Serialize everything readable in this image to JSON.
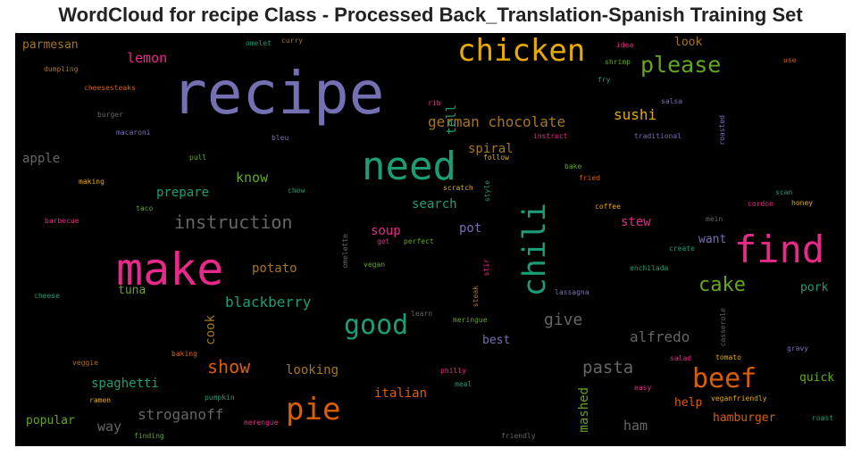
{
  "title": "WordCloud for recipe Class - Processed Back_Translation-Spanish Training Set",
  "chart_data": {
    "type": "wordcloud",
    "background": "#000000",
    "words": [
      {
        "text": "recipe",
        "size": 66,
        "color": "#7570b3"
      },
      {
        "text": "chicken",
        "size": 34,
        "color": "#e6ab02"
      },
      {
        "text": "please",
        "size": 25,
        "color": "#66a61e"
      },
      {
        "text": "need",
        "size": 44,
        "color": "#1b9e77"
      },
      {
        "text": "make",
        "size": 50,
        "color": "#e7298a"
      },
      {
        "text": "find",
        "size": 42,
        "color": "#e7298a"
      },
      {
        "text": "chili",
        "size": 35,
        "color": "#1b9e77"
      },
      {
        "text": "beef",
        "size": 30,
        "color": "#d95f02"
      },
      {
        "text": "pie",
        "size": 34,
        "color": "#d95f02"
      },
      {
        "text": "good",
        "size": 30,
        "color": "#1b9e77"
      },
      {
        "text": "cake",
        "size": 22,
        "color": "#66a61e"
      },
      {
        "text": "instruction",
        "size": 20,
        "color": "#666666"
      },
      {
        "text": "german chocolate",
        "size": 16,
        "color": "#a6761d"
      },
      {
        "text": "sushi",
        "size": 16,
        "color": "#e6ab02"
      },
      {
        "text": "lemon",
        "size": 15,
        "color": "#e7298a"
      },
      {
        "text": "parmesan",
        "size": 13,
        "color": "#a6761d"
      },
      {
        "text": "look",
        "size": 13,
        "color": "#a6761d"
      },
      {
        "text": "show",
        "size": 20,
        "color": "#d95f02"
      },
      {
        "text": "pasta",
        "size": 19,
        "color": "#666666"
      },
      {
        "text": "alfredo",
        "size": 16,
        "color": "#666666"
      },
      {
        "text": "give",
        "size": 18,
        "color": "#666666"
      },
      {
        "text": "blackberry",
        "size": 16,
        "color": "#1b9e77"
      },
      {
        "text": "stroganoff",
        "size": 16,
        "color": "#666666"
      },
      {
        "text": "know",
        "size": 15,
        "color": "#66a61e"
      },
      {
        "text": "prepare",
        "size": 14,
        "color": "#1b9e77"
      },
      {
        "text": "apple",
        "size": 14,
        "color": "#666666"
      },
      {
        "text": "soup",
        "size": 14,
        "color": "#e7298a"
      },
      {
        "text": "search",
        "size": 14,
        "color": "#1b9e77"
      },
      {
        "text": "pot",
        "size": 14,
        "color": "#7570b3"
      },
      {
        "text": "spiral",
        "size": 14,
        "color": "#a6761d"
      },
      {
        "text": "tell",
        "size": 14,
        "color": "#1b9e77"
      },
      {
        "text": "stew",
        "size": 14,
        "color": "#e7298a"
      },
      {
        "text": "want",
        "size": 13,
        "color": "#7570b3"
      },
      {
        "text": "pork",
        "size": 13,
        "color": "#1b9e77"
      },
      {
        "text": "potato",
        "size": 14,
        "color": "#a6761d"
      },
      {
        "text": "tuna",
        "size": 13,
        "color": "#66a61e"
      },
      {
        "text": "cook",
        "size": 14,
        "color": "#a6761d"
      },
      {
        "text": "best",
        "size": 13,
        "color": "#7570b3"
      },
      {
        "text": "looking",
        "size": 14,
        "color": "#a6761d"
      },
      {
        "text": "spaghetti",
        "size": 14,
        "color": "#1b9e77"
      },
      {
        "text": "italian",
        "size": 14,
        "color": "#d95f02"
      },
      {
        "text": "mashed",
        "size": 14,
        "color": "#66a61e"
      },
      {
        "text": "help",
        "size": 13,
        "color": "#d95f02"
      },
      {
        "text": "hamburger",
        "size": 13,
        "color": "#d95f02"
      },
      {
        "text": "ham",
        "size": 15,
        "color": "#666666"
      },
      {
        "text": "quick",
        "size": 13,
        "color": "#66a61e"
      },
      {
        "text": "popular",
        "size": 13,
        "color": "#66a61e"
      },
      {
        "text": "way",
        "size": 15,
        "color": "#666666"
      },
      {
        "text": "omelet",
        "size": 8,
        "color": "#1b9e77"
      },
      {
        "text": "curry",
        "size": 8,
        "color": "#a6761d"
      },
      {
        "text": "dumpling",
        "size": 8,
        "color": "#a6761d"
      },
      {
        "text": "cheesesteaks",
        "size": 8,
        "color": "#d95f02"
      },
      {
        "text": "burger",
        "size": 8,
        "color": "#666666"
      },
      {
        "text": "macaroni",
        "size": 8,
        "color": "#7570b3"
      },
      {
        "text": "bleu",
        "size": 8,
        "color": "#7570b3"
      },
      {
        "text": "pull",
        "size": 8,
        "color": "#66a61e"
      },
      {
        "text": "making",
        "size": 8,
        "color": "#e6ab02"
      },
      {
        "text": "chow",
        "size": 8,
        "color": "#1b9e77"
      },
      {
        "text": "taco",
        "size": 8,
        "color": "#66a61e"
      },
      {
        "text": "barbecue",
        "size": 8,
        "color": "#e7298a"
      },
      {
        "text": "cheese",
        "size": 8,
        "color": "#1b9e77"
      },
      {
        "text": "veggie",
        "size": 8,
        "color": "#a6761d"
      },
      {
        "text": "baking",
        "size": 8,
        "color": "#d95f02"
      },
      {
        "text": "pumpkin",
        "size": 8,
        "color": "#1b9e77"
      },
      {
        "text": "ramen",
        "size": 8,
        "color": "#e6ab02"
      },
      {
        "text": "finding",
        "size": 8,
        "color": "#66a61e"
      },
      {
        "text": "merengue",
        "size": 8,
        "color": "#e7298a"
      },
      {
        "text": "idea",
        "size": 8,
        "color": "#e7298a"
      },
      {
        "text": "shrimp",
        "size": 8,
        "color": "#66a61e"
      },
      {
        "text": "fry",
        "size": 8,
        "color": "#1b9e77"
      },
      {
        "text": "use",
        "size": 8,
        "color": "#d95f02"
      },
      {
        "text": "rib",
        "size": 8,
        "color": "#e7298a"
      },
      {
        "text": "salsa",
        "size": 8,
        "color": "#7570b3"
      },
      {
        "text": "roasted",
        "size": 8,
        "color": "#7570b3"
      },
      {
        "text": "instruct",
        "size": 8,
        "color": "#e7298a"
      },
      {
        "text": "traditional",
        "size": 8,
        "color": "#7570b3"
      },
      {
        "text": "follow",
        "size": 8,
        "color": "#e6ab02"
      },
      {
        "text": "bake",
        "size": 8,
        "color": "#66a61e"
      },
      {
        "text": "fried",
        "size": 8,
        "color": "#d95f02"
      },
      {
        "text": "scratch",
        "size": 8,
        "color": "#e6ab02"
      },
      {
        "text": "style",
        "size": 8,
        "color": "#1b9e77"
      },
      {
        "text": "coffee",
        "size": 8,
        "color": "#e6ab02"
      },
      {
        "text": "scan",
        "size": 8,
        "color": "#1b9e77"
      },
      {
        "text": "cordon",
        "size": 8,
        "color": "#e7298a"
      },
      {
        "text": "honey",
        "size": 8,
        "color": "#e6ab02"
      },
      {
        "text": "mein",
        "size": 8,
        "color": "#666666"
      },
      {
        "text": "create",
        "size": 8,
        "color": "#1b9e77"
      },
      {
        "text": "get",
        "size": 8,
        "color": "#e7298a"
      },
      {
        "text": "perfect",
        "size": 8,
        "color": "#66a61e"
      },
      {
        "text": "omelette",
        "size": 8,
        "color": "#666666"
      },
      {
        "text": "vegan",
        "size": 8,
        "color": "#66a61e"
      },
      {
        "text": "stir",
        "size": 8,
        "color": "#e7298a"
      },
      {
        "text": "steak",
        "size": 8,
        "color": "#a6761d"
      },
      {
        "text": "lassagna",
        "size": 8,
        "color": "#7570b3"
      },
      {
        "text": "enchilada",
        "size": 8,
        "color": "#1b9e77"
      },
      {
        "text": "learn",
        "size": 8,
        "color": "#666666"
      },
      {
        "text": "meringue",
        "size": 8,
        "color": "#66a61e"
      },
      {
        "text": "casserole",
        "size": 8,
        "color": "#666666"
      },
      {
        "text": "gravy",
        "size": 8,
        "color": "#7570b3"
      },
      {
        "text": "salad",
        "size": 8,
        "color": "#e7298a"
      },
      {
        "text": "tomato",
        "size": 8,
        "color": "#e6ab02"
      },
      {
        "text": "philly",
        "size": 8,
        "color": "#e7298a"
      },
      {
        "text": "meal",
        "size": 8,
        "color": "#1b9e77"
      },
      {
        "text": "easy",
        "size": 8,
        "color": "#e7298a"
      },
      {
        "text": "veganfriendly",
        "size": 8,
        "color": "#e6ab02"
      },
      {
        "text": "roast",
        "size": 8,
        "color": "#1b9e77"
      },
      {
        "text": "friendly",
        "size": 8,
        "color": "#666666"
      }
    ]
  }
}
